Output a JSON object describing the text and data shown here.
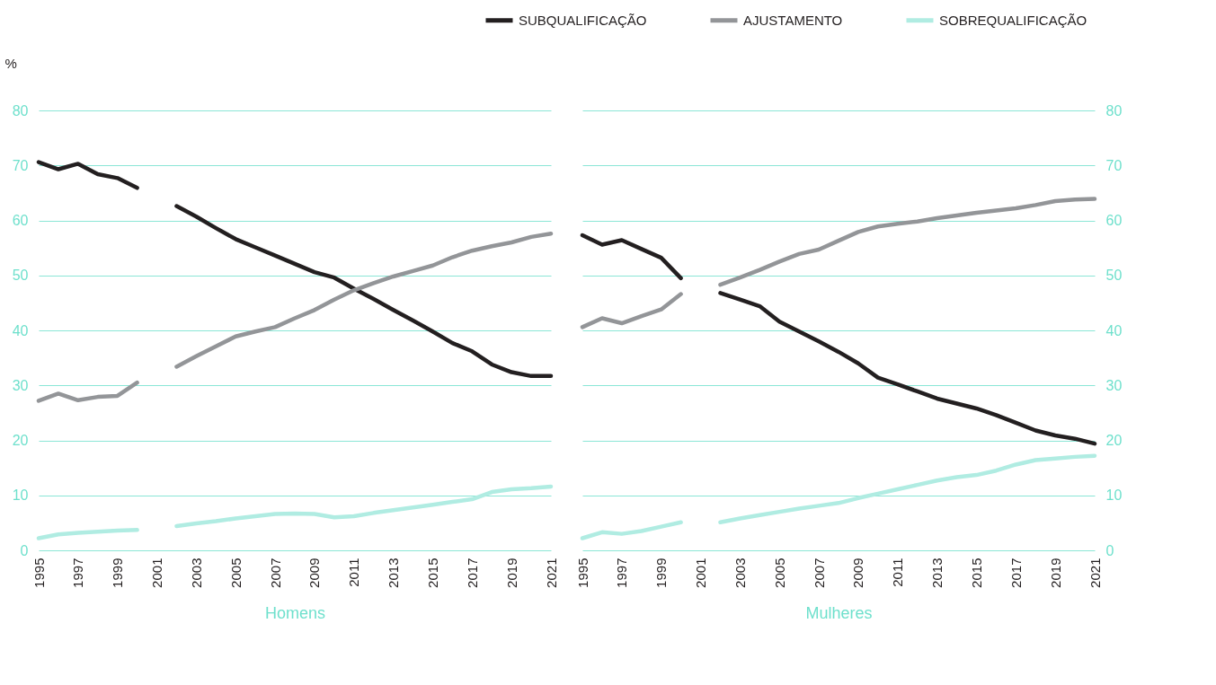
{
  "chart_data": [
    {
      "type": "line",
      "xlabel": "Homens",
      "ylabel": "%",
      "x": [
        1995,
        1996,
        1997,
        1998,
        1999,
        2000,
        2001,
        2002,
        2003,
        2004,
        2005,
        2006,
        2007,
        2008,
        2009,
        2010,
        2011,
        2012,
        2013,
        2014,
        2015,
        2016,
        2017,
        2018,
        2019,
        2020,
        2021
      ],
      "series": [
        {
          "name": "SUBQUALIFICAÇÃO",
          "color": "#231f20",
          "values": [
            70.6,
            69.3,
            70.3,
            68.4,
            67.7,
            65.9,
            null,
            62.6,
            60.7,
            58.6,
            56.6,
            55.1,
            53.6,
            52.1,
            50.6,
            49.6,
            47.6,
            45.7,
            43.7,
            41.8,
            39.8,
            37.7,
            36.2,
            33.8,
            32.4,
            31.7,
            31.7
          ]
        },
        {
          "name": "AJUSTAMENTO",
          "color": "#939598",
          "values": [
            27.2,
            28.5,
            27.3,
            27.9,
            28.1,
            30.5,
            null,
            33.4,
            35.3,
            37.1,
            38.9,
            39.8,
            40.6,
            42.2,
            43.7,
            45.6,
            47.3,
            48.6,
            49.8,
            50.8,
            51.8,
            53.3,
            54.5,
            55.3,
            56.0,
            57.0,
            57.6
          ]
        },
        {
          "name": "SOBREQUALIFICAÇÃO",
          "color": "#b0ece2",
          "values": [
            2.2,
            2.9,
            3.2,
            3.4,
            3.6,
            3.7,
            null,
            4.4,
            4.9,
            5.3,
            5.8,
            6.2,
            6.6,
            6.7,
            6.6,
            6.0,
            6.2,
            6.8,
            7.3,
            7.8,
            8.3,
            8.8,
            9.3,
            10.6,
            11.1,
            11.3,
            11.6
          ]
        }
      ],
      "xlim": [
        1995,
        2021
      ],
      "xticks": [
        1995,
        1997,
        1999,
        2001,
        2003,
        2005,
        2007,
        2009,
        2011,
        2013,
        2015,
        2017,
        2019,
        2021
      ],
      "ylim": [
        0,
        80
      ],
      "yticks": [
        0,
        10,
        20,
        30,
        40,
        50,
        60,
        70,
        80
      ],
      "grid": "y",
      "legend": "top right"
    },
    {
      "type": "line",
      "xlabel": "Mulheres",
      "x": [
        1995,
        1996,
        1997,
        1998,
        1999,
        2000,
        2001,
        2002,
        2003,
        2004,
        2005,
        2006,
        2007,
        2008,
        2009,
        2010,
        2011,
        2012,
        2013,
        2014,
        2015,
        2016,
        2017,
        2018,
        2019,
        2020,
        2021
      ],
      "series": [
        {
          "name": "SUBQUALIFICAÇÃO",
          "color": "#231f20",
          "values": [
            57.3,
            55.6,
            56.4,
            54.8,
            53.2,
            49.5,
            null,
            46.8,
            45.6,
            44.4,
            41.6,
            39.8,
            38.0,
            36.1,
            34.0,
            31.4,
            30.2,
            28.9,
            27.6,
            26.7,
            25.8,
            24.6,
            23.2,
            21.8,
            20.9,
            20.3,
            19.4
          ]
        },
        {
          "name": "AJUSTAMENTO",
          "color": "#939598",
          "values": [
            40.6,
            42.2,
            41.3,
            42.6,
            43.8,
            46.6,
            null,
            48.3,
            49.6,
            51.0,
            52.5,
            53.9,
            54.7,
            56.3,
            57.9,
            58.9,
            59.4,
            59.8,
            60.4,
            60.9,
            61.4,
            61.8,
            62.2,
            62.8,
            63.5,
            63.8,
            63.9
          ]
        },
        {
          "name": "SOBREQUALIFICAÇÃO",
          "color": "#b0ece2",
          "values": [
            2.2,
            3.3,
            3.0,
            3.5,
            4.3,
            5.1,
            null,
            5.1,
            5.8,
            6.4,
            7.0,
            7.6,
            8.1,
            8.6,
            9.5,
            10.3,
            11.1,
            11.9,
            12.7,
            13.3,
            13.7,
            14.5,
            15.6,
            16.4,
            16.7,
            17.0,
            17.2
          ]
        }
      ],
      "xlim": [
        1995,
        2021
      ],
      "xticks": [
        1995,
        1997,
        1999,
        2001,
        2003,
        2005,
        2007,
        2009,
        2011,
        2013,
        2015,
        2017,
        2019,
        2021
      ],
      "ylim": [
        0,
        80
      ],
      "yticks": [
        0,
        10,
        20,
        30,
        40,
        50,
        60,
        70,
        80
      ],
      "grid": "y",
      "legend": "top right"
    }
  ]
}
